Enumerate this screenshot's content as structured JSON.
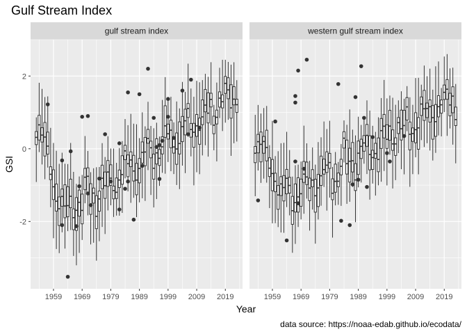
{
  "chart_data": {
    "type": "boxplot",
    "title": "Gulf Stream Index",
    "xlabel": "Year",
    "ylabel": "GSI",
    "caption": "data source: https://noaa-edab.github.io/ecodata/",
    "xlim": [
      1951,
      2025
    ],
    "ylim": [
      -3.85,
      3.0
    ],
    "x_ticks": [
      1959,
      1969,
      1979,
      1989,
      1999,
      2009,
      2019
    ],
    "y_ticks": [
      -2,
      0,
      2
    ],
    "y_tick_labels": [
      "-2",
      "0",
      "2"
    ],
    "grid": true,
    "panels": [
      {
        "name": "gulf stream index",
        "outliers": [
          {
            "x": 1957,
            "y": 1.22
          },
          {
            "x": 1962,
            "y": -0.32
          },
          {
            "x": 1962,
            "y": -2.1
          },
          {
            "x": 1964,
            "y": -3.52
          },
          {
            "x": 1965,
            "y": -0.07
          },
          {
            "x": 1967,
            "y": -2.13
          },
          {
            "x": 1968,
            "y": -1.03
          },
          {
            "x": 1969,
            "y": 0.88
          },
          {
            "x": 1971,
            "y": -1.23
          },
          {
            "x": 1972,
            "y": -1.55
          },
          {
            "x": 1971,
            "y": 0.9
          },
          {
            "x": 1975,
            "y": -0.82
          },
          {
            "x": 1977,
            "y": 0.4
          },
          {
            "x": 1979,
            "y": -0.9
          },
          {
            "x": 1982,
            "y": 0.15
          },
          {
            "x": 1982,
            "y": -1.67
          },
          {
            "x": 1984,
            "y": -1.1
          },
          {
            "x": 1985,
            "y": -0.9
          },
          {
            "x": 1985,
            "y": 1.55
          },
          {
            "x": 1987,
            "y": -1.95
          },
          {
            "x": 1989,
            "y": 1.5
          },
          {
            "x": 1990,
            "y": -0.47
          },
          {
            "x": 1992,
            "y": 2.2
          },
          {
            "x": 1994,
            "y": 0.85
          },
          {
            "x": 1995,
            "y": 0.05
          },
          {
            "x": 1996,
            "y": 0.1
          },
          {
            "x": 1996,
            "y": -0.83
          },
          {
            "x": 1997,
            "y": 0.22
          },
          {
            "x": 1999,
            "y": 1.37
          },
          {
            "x": 1999,
            "y": 0.88
          },
          {
            "x": 2001,
            "y": 0.3
          },
          {
            "x": 2004,
            "y": 1.6
          },
          {
            "x": 2006,
            "y": 0.4
          },
          {
            "x": 2007,
            "y": 1.9
          },
          {
            "x": 2010,
            "y": 0.58
          }
        ]
      },
      {
        "name": "western gulf stream index",
        "outliers": [
          {
            "x": 1954,
            "y": -1.42
          },
          {
            "x": 1960,
            "y": 0.75
          },
          {
            "x": 1964,
            "y": -2.52
          },
          {
            "x": 1967,
            "y": 1.45
          },
          {
            "x": 1967,
            "y": 1.27
          },
          {
            "x": 1968,
            "y": 2.15
          },
          {
            "x": 1968,
            "y": -1.5
          },
          {
            "x": 1971,
            "y": 2.45
          },
          {
            "x": 1967,
            "y": -0.35
          },
          {
            "x": 1970,
            "y": -0.55
          },
          {
            "x": 1982,
            "y": 1.78
          },
          {
            "x": 1983,
            "y": -1.98
          },
          {
            "x": 1986,
            "y": -2.1
          },
          {
            "x": 1987,
            "y": -0.98
          },
          {
            "x": 1988,
            "y": 1.42
          },
          {
            "x": 1989,
            "y": -0.85
          },
          {
            "x": 1990,
            "y": 2.27
          },
          {
            "x": 1991,
            "y": 0.85
          },
          {
            "x": 1992,
            "y": -1.05
          },
          {
            "x": 1994,
            "y": 0.32
          },
          {
            "x": 1999,
            "y": -0.12
          },
          {
            "x": 2000,
            "y": -0.35
          },
          {
            "x": 2005,
            "y": 0.35
          }
        ]
      }
    ]
  }
}
